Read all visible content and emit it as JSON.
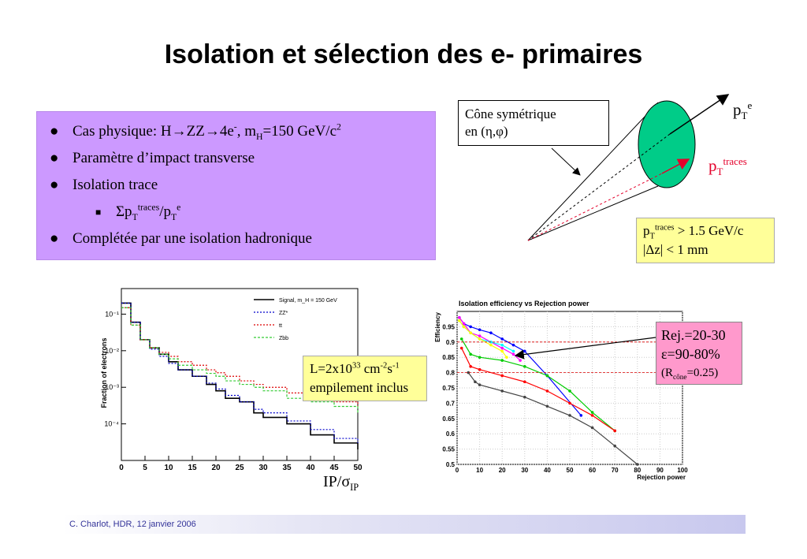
{
  "title": "Isolation et sélection des e- primaires",
  "bullets": {
    "b1": {
      "pre": "Cas physique: H",
      "arrow1": "→",
      "mid": "ZZ",
      "arrow2": "→",
      "post": "4e",
      "sup1": "-",
      "post2": ", m",
      "sub1": "H",
      "post3": "=150 GeV/c",
      "sup2": "2"
    },
    "b2": "Paramètre d’impact transverse",
    "b3": "Isolation trace",
    "b3sub": {
      "sigma": "Σp",
      "sub1": "T",
      "sup1": "traces",
      "mid": "/p",
      "sub2": "T",
      "sup2": "e"
    },
    "b4": "Complétée par une isolation hadronique"
  },
  "cone": {
    "label1": "Cône symétrique",
    "label2": "en (η,φ)",
    "pte": {
      "p": "p",
      "sub": "T",
      "sup": "e"
    },
    "pttraces": {
      "p": "p",
      "sub": "T",
      "sup": "traces"
    },
    "cuts": {
      "l1p": "p",
      "l1sub": "T",
      "l1sup": "traces",
      "l1rest": " > 1.5 GeV/c",
      "l2": "|Δz| < 1 mm"
    }
  },
  "lumi": {
    "pre": "L=2x10",
    "sup1": "33",
    "mid": " cm",
    "sup2": "-2",
    "s": "s",
    "sup3": "-1",
    "line2": "empilement inclus"
  },
  "ip_label": {
    "main": "IP/σ",
    "sub": "IP"
  },
  "rej": {
    "l1": "Rej.=20-30",
    "l2": "ε=90-80%",
    "l3pre": "(R",
    "l3sub": "cône",
    "l3post": "=0.25)"
  },
  "footer": "C. Charlot, HDR, 12 janvier 2006",
  "chart_data": [
    {
      "type": "line",
      "title": "",
      "xlabel": "",
      "ylabel": "Fraction of electrons",
      "xlim": [
        0,
        50
      ],
      "ylim": [
        1e-05,
        0.5
      ],
      "yscale": "log",
      "xticks": [
        "0",
        "5",
        "10",
        "15",
        "20",
        "25",
        "30",
        "35",
        "40",
        "45",
        "50"
      ],
      "yticks": [
        "10⁻¹",
        "10⁻²",
        "10⁻³",
        "10⁻⁴"
      ],
      "legend_position": "top-right",
      "series": [
        {
          "name": "Signal, m_H = 150 GeV",
          "color": "#000000",
          "x": [
            0,
            2,
            4,
            6,
            8,
            10,
            12,
            15,
            18,
            20,
            22,
            25,
            28,
            30,
            35,
            40,
            45,
            50
          ],
          "y": [
            0.2,
            0.06,
            0.02,
            0.012,
            0.008,
            0.005,
            0.003,
            0.002,
            0.0012,
            0.0008,
            0.0005,
            0.0004,
            0.0002,
            0.00015,
            0.0001,
            5e-05,
            3e-05,
            2e-05
          ]
        },
        {
          "name": "ZZ*",
          "color": "#0000cc",
          "x": [
            0,
            2,
            4,
            6,
            8,
            10,
            12,
            15,
            18,
            20,
            22,
            25,
            28,
            30,
            35,
            40,
            45,
            50
          ],
          "y": [
            0.2,
            0.06,
            0.02,
            0.011,
            0.007,
            0.0045,
            0.003,
            0.002,
            0.0013,
            0.0009,
            0.0006,
            0.0004,
            0.00025,
            0.0002,
            0.00012,
            7e-05,
            4e-05,
            3e-05
          ]
        },
        {
          "name": "tt",
          "color": "#dd0000",
          "x": [
            0,
            2,
            4,
            6,
            8,
            10,
            12,
            15,
            18,
            20,
            22,
            25,
            28,
            30,
            35,
            40,
            45,
            50
          ],
          "y": [
            0.15,
            0.05,
            0.02,
            0.012,
            0.009,
            0.007,
            0.005,
            0.004,
            0.003,
            0.0025,
            0.002,
            0.0015,
            0.0012,
            0.001,
            0.0007,
            0.0005,
            0.0004,
            0.0003
          ]
        },
        {
          "name": "Zbb",
          "color": "#33cc33",
          "x": [
            0,
            2,
            4,
            6,
            8,
            10,
            12,
            15,
            18,
            20,
            22,
            25,
            28,
            30,
            35,
            40,
            45,
            50
          ],
          "y": [
            0.15,
            0.05,
            0.02,
            0.012,
            0.008,
            0.006,
            0.004,
            0.003,
            0.0024,
            0.002,
            0.0015,
            0.0012,
            0.001,
            0.0008,
            0.0005,
            0.0004,
            0.0003,
            0.0002
          ]
        }
      ]
    },
    {
      "type": "line",
      "title": "Isolation efficiency vs Rejection power",
      "xlabel": "Rejection power",
      "ylabel": "Efficiency",
      "xlim": [
        0,
        100
      ],
      "ylim": [
        0.5,
        1.0
      ],
      "xticks": [
        "0",
        "10",
        "20",
        "30",
        "40",
        "50",
        "60",
        "70",
        "80",
        "90",
        "100"
      ],
      "yticks": [
        "0.5",
        "0.55",
        "0.6",
        "0.65",
        "0.7",
        "0.75",
        "0.8",
        "0.85",
        "0.9",
        "0.95"
      ],
      "grid": true,
      "series": [
        {
          "color": "#0000ff",
          "x": [
            1,
            3,
            6,
            10,
            15,
            20,
            25,
            30,
            40,
            55
          ],
          "y": [
            0.98,
            0.96,
            0.95,
            0.94,
            0.93,
            0.91,
            0.89,
            0.87,
            0.79,
            0.66
          ]
        },
        {
          "color": "#ff00ff",
          "x": [
            1,
            3,
            6,
            10,
            15,
            20,
            25,
            28
          ],
          "y": [
            0.98,
            0.96,
            0.93,
            0.92,
            0.9,
            0.88,
            0.86,
            0.84
          ]
        },
        {
          "color": "#00ffff",
          "x": [
            1,
            3,
            6,
            10,
            15,
            20,
            25
          ],
          "y": [
            0.97,
            0.95,
            0.93,
            0.91,
            0.9,
            0.89,
            0.87
          ]
        },
        {
          "color": "#ffff00",
          "x": [
            1,
            3,
            6,
            10,
            15,
            20,
            22
          ],
          "y": [
            0.97,
            0.95,
            0.93,
            0.91,
            0.89,
            0.87,
            0.85
          ]
        },
        {
          "color": "#00cc00",
          "x": [
            2,
            6,
            10,
            20,
            30,
            40,
            50,
            60,
            70
          ],
          "y": [
            0.91,
            0.86,
            0.85,
            0.84,
            0.82,
            0.79,
            0.74,
            0.67,
            0.61
          ]
        },
        {
          "color": "#ff0000",
          "x": [
            2,
            6,
            10,
            20,
            30,
            40,
            50,
            60,
            70
          ],
          "y": [
            0.88,
            0.82,
            0.81,
            0.79,
            0.77,
            0.74,
            0.7,
            0.66,
            0.61
          ]
        },
        {
          "color": "#444444",
          "x": [
            5,
            8,
            10,
            20,
            30,
            40,
            50,
            60,
            70,
            80
          ],
          "y": [
            0.8,
            0.77,
            0.76,
            0.74,
            0.72,
            0.69,
            0.66,
            0.62,
            0.56,
            0.5
          ]
        }
      ]
    }
  ]
}
